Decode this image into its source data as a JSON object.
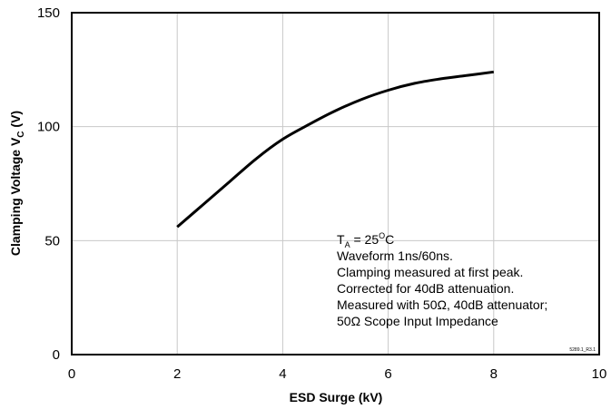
{
  "chart_data": {
    "type": "line",
    "title": "",
    "xlabel": "ESD Surge (kV)",
    "ylabel_main": "Clamping Voltage V",
    "ylabel_sub": "C",
    "ylabel_unit": " (V)",
    "xlim": [
      0,
      10
    ],
    "ylim": [
      0,
      150
    ],
    "xticks": [
      0,
      2,
      4,
      6,
      8,
      10
    ],
    "yticks": [
      0,
      50,
      100,
      150
    ],
    "grid": true,
    "line_color": "#000000",
    "grid_color": "#c8c8c8",
    "series": [
      {
        "x": [
          2.0,
          2.5,
          3.0,
          3.5,
          4.0,
          4.5,
          5.0,
          5.5,
          6.0,
          6.5,
          7.0,
          7.5,
          8.0
        ],
        "y": [
          56,
          66,
          76,
          86,
          94.5,
          101,
          107,
          112,
          116,
          119,
          121,
          122.5,
          124
        ]
      }
    ],
    "annotation": {
      "ta_main": "T",
      "ta_sub": "A",
      "ta_eq": " = 25",
      "ta_sup": "O",
      "ta_unit": "C",
      "lines": [
        "Waveform 1ns/60ns.",
        "Clamping measured at first peak.",
        "Corrected for 40dB attenuation.",
        "Measured with 50Ω, 40dB attenuator;",
        "50Ω Scope Input Impedance"
      ]
    },
    "figure_id": "5289.1_R3.1"
  }
}
